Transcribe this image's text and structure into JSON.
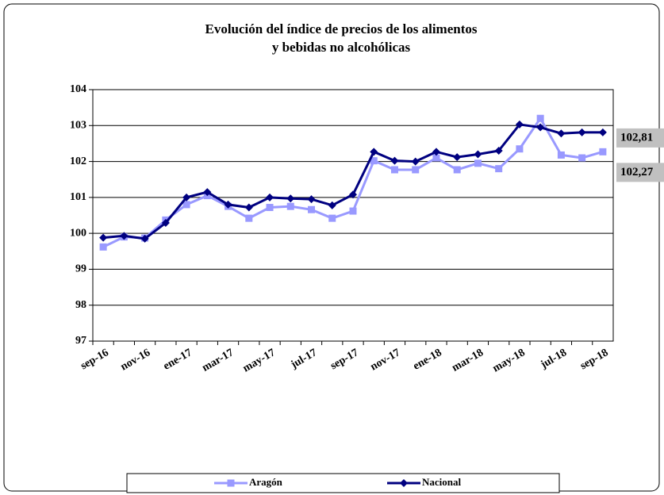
{
  "chart_data": {
    "type": "line",
    "title": [
      "Evolución del índice de precios de los alimentos",
      "y bebidas no alcohólicas"
    ],
    "categories": [
      "sep-16",
      null,
      "nov-16",
      null,
      "ene-17",
      null,
      "mar-17",
      null,
      "may-17",
      null,
      "jul-17",
      null,
      "sep-17",
      null,
      "nov-17",
      null,
      "ene-18",
      null,
      "mar-18",
      null,
      "may-18",
      null,
      "jul-18",
      null,
      "sep-18"
    ],
    "ylim": [
      97,
      104
    ],
    "yticks": [
      97,
      98,
      99,
      100,
      101,
      102,
      103,
      104
    ],
    "grid": true,
    "legend": "bottom",
    "series": [
      {
        "name": "Aragón",
        "color": "#9999ff",
        "marker": "square",
        "values": [
          99.62,
          99.9,
          99.87,
          100.37,
          100.8,
          101.05,
          100.75,
          100.42,
          100.72,
          100.75,
          100.66,
          100.42,
          100.62,
          102.02,
          101.77,
          101.77,
          102.1,
          101.77,
          101.95,
          101.8,
          102.35,
          103.2,
          102.18,
          102.1,
          102.27
        ],
        "value_labels": [
          null,
          null,
          null,
          null,
          null,
          null,
          null,
          null,
          null,
          null,
          null,
          null,
          null,
          null,
          null,
          null,
          null,
          null,
          null,
          null,
          null,
          null,
          null,
          null,
          "102,27"
        ]
      },
      {
        "name": "Nacional",
        "color": "#000080",
        "marker": "diamond",
        "values": [
          99.88,
          99.93,
          99.85,
          100.29,
          101.0,
          101.15,
          100.8,
          100.72,
          101.0,
          100.97,
          100.95,
          100.78,
          101.08,
          102.27,
          102.02,
          102.0,
          102.27,
          102.12,
          102.2,
          102.3,
          103.03,
          102.95,
          102.78,
          102.81,
          102.81
        ],
        "value_labels": [
          null,
          null,
          null,
          null,
          null,
          null,
          null,
          null,
          null,
          null,
          null,
          null,
          null,
          null,
          null,
          null,
          null,
          null,
          null,
          null,
          null,
          null,
          null,
          null,
          "102,81"
        ]
      }
    ]
  }
}
